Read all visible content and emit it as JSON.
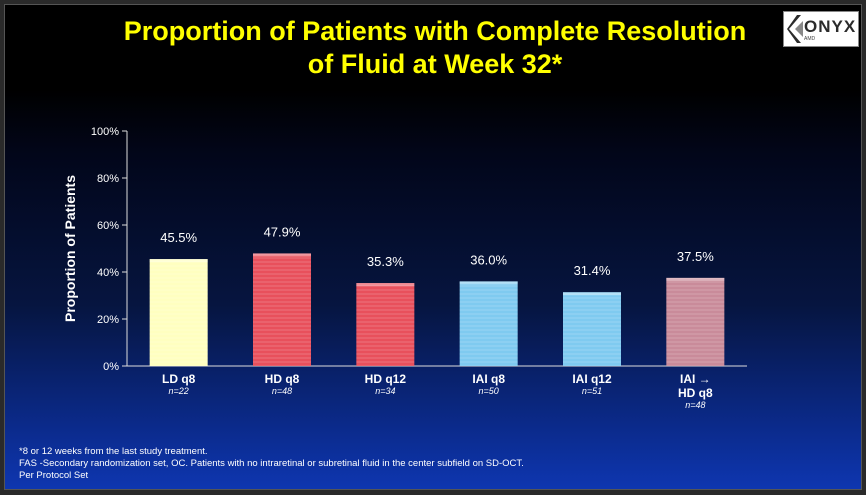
{
  "slide": {
    "title_line1": "Proportion of Patients with Complete Resolution",
    "title_line2": "of Fluid at Week 32*",
    "logo_text": "ONYX",
    "logo_sub": "AMD",
    "footnotes": [
      "*8 or 12 weeks from the last study treatment.",
      "FAS -Secondary randomization set, OC. Patients with no intraretinal or subretinal fluid in the center subfield on SD-OCT.",
      "Per Protocol Set"
    ]
  },
  "chart_data": {
    "type": "bar",
    "title": "Proportion of Patients with Complete Resolution of Fluid at Week 32*",
    "ylabel": "Proportion of Patients",
    "xlabel": "",
    "ylim": [
      0,
      100
    ],
    "yticks": [
      "0%",
      "20%",
      "40%",
      "60%",
      "80%",
      "100%"
    ],
    "grid": false,
    "categories": [
      {
        "label_lines": [
          "LD q8"
        ],
        "n": "n=22"
      },
      {
        "label_lines": [
          "HD q8"
        ],
        "n": "n=48"
      },
      {
        "label_lines": [
          "HD q12"
        ],
        "n": "n=34"
      },
      {
        "label_lines": [
          "IAI q8"
        ],
        "n": "n=50"
      },
      {
        "label_lines": [
          "IAI q12"
        ],
        "n": "n=51"
      },
      {
        "label_lines": [
          "IAI →",
          "HD q8"
        ],
        "n": "n=48"
      }
    ],
    "values": [
      45.5,
      47.9,
      35.3,
      36.0,
      31.4,
      37.5
    ],
    "value_labels": [
      "45.5%",
      "47.9%",
      "35.3%",
      "36.0%",
      "31.4%",
      "37.5%"
    ],
    "colors": [
      "#ffffc0",
      "#e8505c",
      "#e8505c",
      "#7fcaf0",
      "#7fcaf0",
      "#c98b9a"
    ]
  }
}
